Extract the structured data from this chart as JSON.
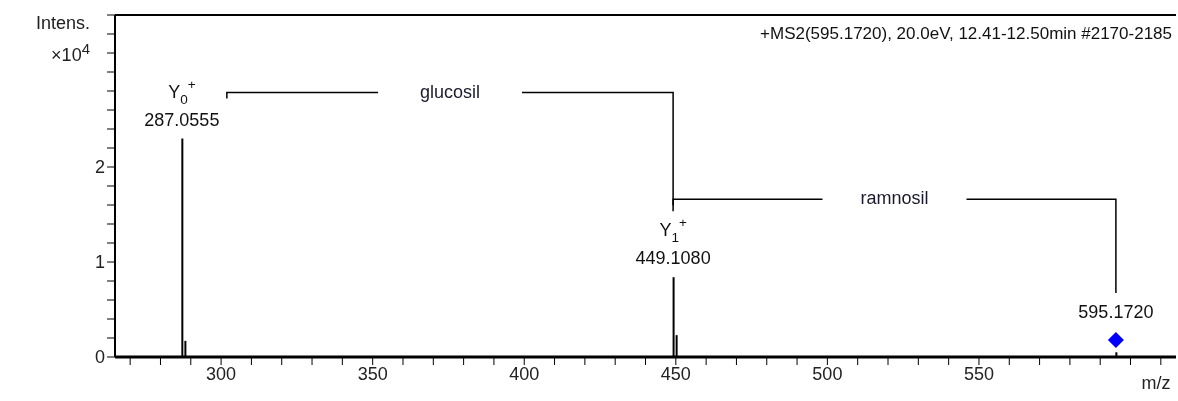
{
  "chart_data": {
    "type": "bar",
    "title": "+MS2(595.1720), 20.0eV, 12.41-12.50min #2170-2185",
    "xlabel": "m/z",
    "ylabel": "Intens. ×10$^{4}$",
    "xlim": [
      265,
      615
    ],
    "ylim": [
      0,
      3.6
    ],
    "xticks": [
      {
        "value": 270,
        "label": null
      },
      {
        "value": 280,
        "label": null
      },
      {
        "value": 290,
        "label": null
      },
      300,
      {
        "value": 310,
        "label": null
      },
      {
        "value": 320,
        "label": null
      },
      {
        "value": 330,
        "label": null
      },
      {
        "value": 340,
        "label": null
      },
      350,
      {
        "value": 360,
        "label": null
      },
      {
        "value": 370,
        "label": null
      },
      {
        "value": 380,
        "label": null
      },
      {
        "value": 390,
        "label": null
      },
      400,
      {
        "value": 410,
        "label": null
      },
      {
        "value": 420,
        "label": null
      },
      {
        "value": 430,
        "label": null
      },
      {
        "value": 440,
        "label": null
      },
      450,
      {
        "value": 460,
        "label": null
      },
      {
        "value": 470,
        "label": null
      },
      {
        "value": 480,
        "label": null
      },
      {
        "value": 490,
        "label": null
      },
      500,
      {
        "value": 510,
        "label": null
      },
      {
        "value": 520,
        "label": null
      },
      {
        "value": 530,
        "label": null
      },
      {
        "value": 540,
        "label": null
      },
      550,
      {
        "value": 560,
        "label": null
      },
      {
        "value": 570,
        "label": null
      },
      {
        "value": 580,
        "label": null
      },
      {
        "value": 590,
        "label": null
      },
      {
        "value": 600,
        "label": null
      },
      {
        "value": 610,
        "label": null
      }
    ],
    "yticks": [
      0,
      {
        "value": 0.2,
        "label": null
      },
      {
        "value": 0.4,
        "label": null
      },
      {
        "value": 0.6,
        "label": null
      },
      {
        "value": 0.8,
        "label": null
      },
      1,
      {
        "value": 1.2,
        "label": null
      },
      {
        "value": 1.4,
        "label": null
      },
      {
        "value": 1.6,
        "label": null
      },
      {
        "value": 1.8,
        "label": null
      },
      2,
      {
        "value": 2.2,
        "label": null
      },
      {
        "value": 2.4,
        "label": null
      },
      {
        "value": 2.6,
        "label": null
      },
      {
        "value": 2.8,
        "label": null
      },
      {
        "value": 3,
        "label": null
      },
      {
        "value": 3.2,
        "label": null
      },
      {
        "value": 3.4,
        "label": null
      },
      {
        "value": 3.6,
        "label": null
      }
    ],
    "series": [
      {
        "color": "#000000",
        "x": [
          287.0555,
          288.06,
          449.108,
          450.11,
          595.172
        ],
        "values": [
          2.3,
          0.17,
          0.84,
          0.23,
          0.05
        ],
        "value_labels": [
          "Y$_{0}$$^{+}$\n287.0555",
          null,
          "Y$_{1}$$^{+}$\n449.1080",
          null,
          null
        ]
      },
      {
        "type": "scatter",
        "color": "#0000ff",
        "marker": "diamond",
        "x": [
          595.172
        ],
        "values": [
          0.18
        ]
      }
    ],
    "annotations": [
      "glucosil",
      "ramnosil",
      {
        "text": "595.1720",
        "x": 595.172,
        "y": 0.18
      }
    ]
  }
}
